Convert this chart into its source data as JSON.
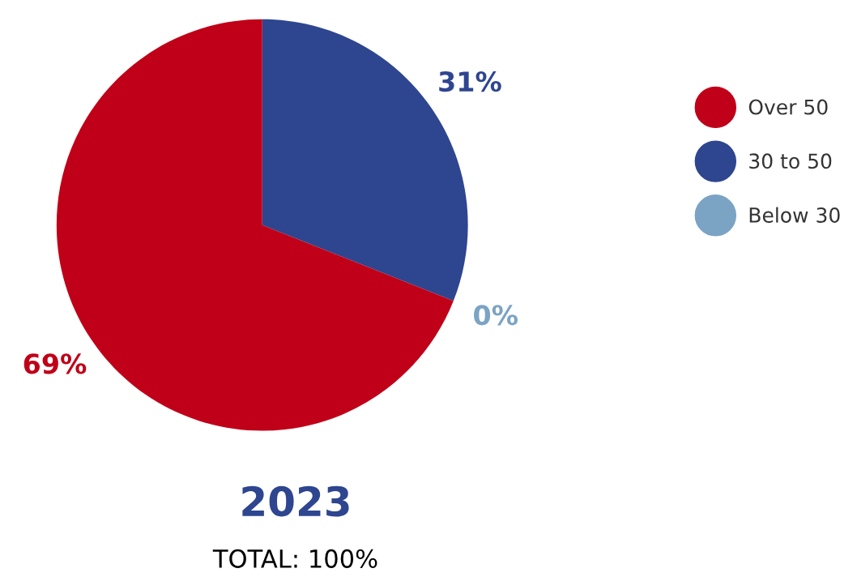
{
  "chart_data": {
    "type": "pie",
    "title": "2023",
    "subtitle": "TOTAL: 100%",
    "categories": [
      "Over 50",
      "30 to 50",
      "Below 30"
    ],
    "values": [
      69,
      31,
      0
    ],
    "colors": [
      "#c00018",
      "#2e4590",
      "#7ba3c4"
    ],
    "value_labels": [
      "69%",
      "31%",
      "0%"
    ],
    "legend": "right"
  }
}
